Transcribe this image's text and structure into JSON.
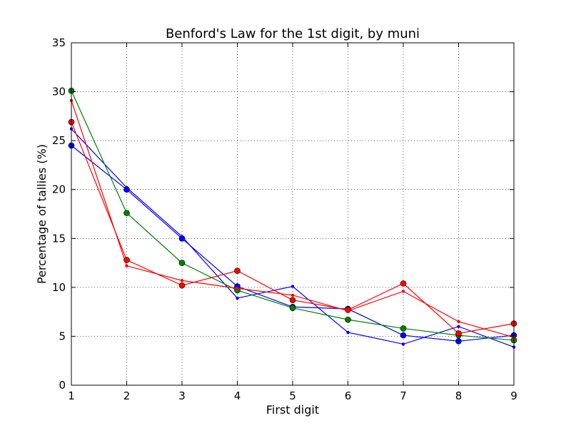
{
  "chart_data": {
    "type": "line",
    "title": "Benford's Law for the 1st digit, by muni",
    "xlabel": "First digit",
    "ylabel": "Percentage of tallies (%)",
    "xlim": [
      1,
      9
    ],
    "ylim": [
      0,
      35
    ],
    "grid": true,
    "x_ticks": [
      "1",
      "2",
      "3",
      "4",
      "5",
      "6",
      "7",
      "8",
      "9"
    ],
    "y_ticks": [
      "0",
      "5",
      "10",
      "15",
      "20",
      "25",
      "30",
      "35"
    ],
    "x": [
      1,
      2,
      3,
      4,
      5,
      6,
      7,
      8,
      9
    ],
    "series": [
      {
        "color": "#0000ff",
        "marker": "circle",
        "values": [
          24.5,
          20.0,
          15.0,
          10.1,
          8.0,
          7.8,
          5.1,
          4.5,
          5.1
        ]
      },
      {
        "color": "#0000ff",
        "marker": "dot",
        "values": [
          26.2,
          20.2,
          15.2,
          8.9,
          10.1,
          5.4,
          4.2,
          6.0,
          3.9
        ]
      },
      {
        "color": "#008000",
        "marker": "circle",
        "values": [
          30.1,
          17.6,
          12.5,
          9.7,
          7.9,
          6.7,
          5.8,
          5.1,
          4.6
        ]
      },
      {
        "color": "#ff0000",
        "marker": "circle",
        "values": [
          26.9,
          12.8,
          10.2,
          11.7,
          8.7,
          7.7,
          10.4,
          5.3,
          6.3
        ]
      },
      {
        "color": "#ff0000",
        "marker": "dot",
        "values": [
          29.1,
          12.2,
          10.7,
          9.9,
          9.2,
          7.6,
          9.6,
          6.5,
          4.9
        ]
      }
    ]
  }
}
